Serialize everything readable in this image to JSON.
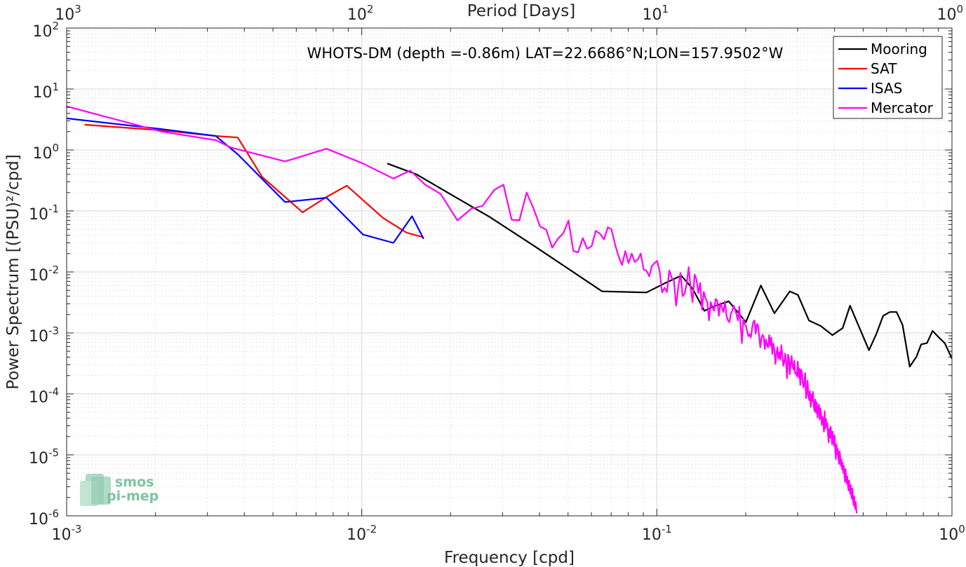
{
  "chart_data": {
    "type": "line",
    "title": "WHOTS-DM (depth =-0.86m) LAT=22.6686°N;LON=157.9502°W",
    "xlabel": "Frequency [cpd]",
    "ylabel": "Power Spectrum [(PSU)²/cpd]",
    "x2label": "Period [Days]",
    "xscale": "log",
    "yscale": "log",
    "xlim": [
      0.001,
      1
    ],
    "ylim": [
      1e-06,
      100
    ],
    "grid": true,
    "legend_position": "top-right",
    "x_ticks": [
      {
        "value": 0.001,
        "base": "10",
        "exp": "-3"
      },
      {
        "value": 0.01,
        "base": "10",
        "exp": "-2"
      },
      {
        "value": 0.1,
        "base": "10",
        "exp": "-1"
      },
      {
        "value": 1,
        "base": "10",
        "exp": "0"
      }
    ],
    "x2_ticks": [
      {
        "value": 0.001,
        "base": "10",
        "exp": "3"
      },
      {
        "value": 0.01,
        "base": "10",
        "exp": "2"
      },
      {
        "value": 0.1,
        "base": "10",
        "exp": "1"
      },
      {
        "value": 1,
        "base": "10",
        "exp": "0"
      }
    ],
    "y_ticks": [
      {
        "value": 100,
        "base": "10",
        "exp": "2"
      },
      {
        "value": 10,
        "base": "10",
        "exp": "1"
      },
      {
        "value": 1,
        "base": "10",
        "exp": "0"
      },
      {
        "value": 0.1,
        "base": "10",
        "exp": "-1"
      },
      {
        "value": 0.01,
        "base": "10",
        "exp": "-2"
      },
      {
        "value": 0.001,
        "base": "10",
        "exp": "-3"
      },
      {
        "value": 0.0001,
        "base": "10",
        "exp": "-4"
      },
      {
        "value": 1e-05,
        "base": "10",
        "exp": "-5"
      },
      {
        "value": 1e-06,
        "base": "10",
        "exp": "-6"
      }
    ],
    "series": [
      {
        "name": "Mooring",
        "color": "#000000",
        "x": [
          0.0122,
          0.0153,
          0.0203,
          0.0271,
          0.0392,
          0.0652,
          0.0922,
          0.1062,
          0.121,
          0.1322,
          0.145,
          0.1552,
          0.1752,
          0.2003,
          0.2252,
          0.2502,
          0.2821,
          0.3006,
          0.3276,
          0.3594,
          0.3934,
          0.4262,
          0.4514,
          0.4768,
          0.5232,
          0.5552,
          0.5842,
          0.6158,
          0.6491,
          0.6802,
          0.7194,
          0.7586,
          0.7866,
          0.8225,
          0.8598,
          0.9012,
          0.9451,
          1.0
        ],
        "y": [
          0.6,
          0.4,
          0.18,
          0.08,
          0.025,
          0.0048,
          0.0046,
          0.0065,
          0.0087,
          0.0053,
          0.0023,
          0.0027,
          0.0033,
          0.0015,
          0.006,
          0.0021,
          0.0048,
          0.0042,
          0.0016,
          0.0013,
          0.00092,
          0.0012,
          0.0028,
          0.0015,
          0.00052,
          0.00098,
          0.0019,
          0.0022,
          0.0022,
          0.00135,
          0.00028,
          0.00041,
          0.00065,
          0.00068,
          0.00108,
          0.00085,
          0.00068,
          0.00038
        ]
      },
      {
        "name": "SAT",
        "color": "#ff0000",
        "x": [
          0.00115,
          0.0021,
          0.0032,
          0.0038,
          0.0046,
          0.0063,
          0.0076,
          0.0089,
          0.0118,
          0.0142,
          0.0162
        ],
        "y": [
          2.6,
          2.1,
          1.7,
          1.6,
          0.36,
          0.095,
          0.17,
          0.26,
          0.077,
          0.044,
          0.037
        ]
      },
      {
        "name": "ISAS",
        "color": "#0000ff",
        "x": [
          0.001,
          0.0021,
          0.0032,
          0.0038,
          0.0055,
          0.0076,
          0.0101,
          0.0128,
          0.0148,
          0.0162
        ],
        "y": [
          3.3,
          2.2,
          1.7,
          0.85,
          0.14,
          0.165,
          0.041,
          0.03,
          0.082,
          0.035
        ]
      },
      {
        "name": "Mercator",
        "color": "#ff00ff",
        "x": [
          0.001,
          0.0021,
          0.0032,
          0.0036,
          0.0055,
          0.0076,
          0.0101,
          0.0128,
          0.0146,
          0.0164,
          0.0185,
          0.0211,
          0.0236,
          0.0256,
          0.0281,
          0.0302,
          0.0322,
          0.0342,
          0.0362,
          0.0382,
          0.0402,
          0.0422,
          0.0442,
          0.0462,
          0.0482,
          0.0502,
          0.0521,
          0.0541,
          0.0561,
          0.0581,
          0.0601,
          0.0621,
          0.0642,
          0.0662,
          0.0682,
          0.0702,
          0.0722,
          0.0742,
          0.0762,
          0.0782,
          0.0802,
          0.0822,
          0.0842,
          0.0862,
          0.0882,
          0.0902,
          0.0922,
          0.0942,
          0.0962,
          0.0982,
          0.1002,
          0.1022,
          0.1042,
          0.1062,
          0.1082,
          0.1102,
          0.1122,
          0.1142,
          0.1162,
          0.1182,
          0.1202,
          0.1222,
          0.1242,
          0.1262,
          0.1282,
          0.1302,
          0.1322,
          0.1342,
          0.1362,
          0.1382,
          0.1402,
          0.1422,
          0.1442,
          0.1462,
          0.1482,
          0.1502,
          0.1522,
          0.1542,
          0.1562,
          0.1582,
          0.1602,
          0.1622,
          0.1642,
          0.1662,
          0.1682,
          0.1702,
          0.1722,
          0.1742,
          0.1762,
          0.1782,
          0.1802,
          0.1822,
          0.1842,
          0.1862,
          0.1882,
          0.1902,
          0.1922,
          0.1942,
          0.1962,
          0.1982,
          0.2002,
          0.2022,
          0.2042,
          0.2062,
          0.2082,
          0.2102,
          0.2122,
          0.2142,
          0.2162,
          0.2182,
          0.2202,
          0.2222,
          0.2242,
          0.2262,
          0.2282,
          0.2302,
          0.2322,
          0.2342,
          0.2362,
          0.2382,
          0.2402,
          0.2422,
          0.2442,
          0.2462,
          0.2482,
          0.2502,
          0.2522,
          0.2542,
          0.2562,
          0.2582,
          0.2602,
          0.2622,
          0.2642,
          0.2662,
          0.2682,
          0.2702,
          0.2722,
          0.2742,
          0.2762,
          0.2782,
          0.2802,
          0.2822,
          0.2842,
          0.2862,
          0.2882,
          0.2902,
          0.2922,
          0.2942,
          0.2962,
          0.2982,
          0.3002,
          0.3022,
          0.3042,
          0.3062,
          0.3082,
          0.3102,
          0.3122,
          0.3142,
          0.3162,
          0.3182,
          0.3202,
          0.3222,
          0.3242,
          0.3262,
          0.3282,
          0.3302,
          0.3322,
          0.3342,
          0.3362,
          0.3382,
          0.3402,
          0.3422,
          0.3442,
          0.3462,
          0.3482,
          0.3502,
          0.3522,
          0.3542,
          0.3562,
          0.3582,
          0.3602,
          0.3622,
          0.3642,
          0.3662,
          0.3682,
          0.3702,
          0.3722,
          0.3742,
          0.3762,
          0.3782,
          0.3802,
          0.3822,
          0.3842,
          0.3862,
          0.3882,
          0.3902,
          0.3922,
          0.3942,
          0.3962,
          0.3982,
          0.4002,
          0.4022,
          0.4042,
          0.4062,
          0.4082,
          0.4102,
          0.4122,
          0.4142,
          0.4162,
          0.4182,
          0.4202,
          0.4222,
          0.4242,
          0.4262,
          0.4282,
          0.4302,
          0.4322,
          0.4342,
          0.4362,
          0.4382,
          0.4402,
          0.4422,
          0.4442,
          0.4462,
          0.4482,
          0.4502,
          0.4522,
          0.4542,
          0.4562,
          0.4582,
          0.4602,
          0.4622,
          0.4642,
          0.4662,
          0.4682,
          0.4702,
          0.4722,
          0.4742,
          0.4762
        ],
        "y": [
          5.2,
          2.0,
          1.45,
          1.1,
          0.65,
          1.05,
          0.6,
          0.34,
          0.46,
          0.27,
          0.19,
          0.07,
          0.11,
          0.12,
          0.22,
          0.27,
          0.072,
          0.07,
          0.2,
          0.11,
          0.056,
          0.049,
          0.025,
          0.035,
          0.043,
          0.07,
          0.022,
          0.021,
          0.036,
          0.024,
          0.0264,
          0.0472,
          0.0422,
          0.0342,
          0.054,
          0.05,
          0.028,
          0.018,
          0.013,
          0.022,
          0.014,
          0.02,
          0.0146,
          0.016,
          0.02,
          0.011,
          0.0105,
          0.0085,
          0.0125,
          0.014,
          0.0152,
          0.0103,
          0.0046,
          0.0055,
          0.0047,
          0.0106,
          0.0081,
          0.0072,
          0.0028,
          0.0056,
          0.0096,
          0.004,
          0.0044,
          0.0064,
          0.012,
          0.0054,
          0.0032,
          0.0091,
          0.0075,
          0.0045,
          0.0066,
          0.0024,
          0.0047,
          0.0037,
          0.0032,
          0.0016,
          0.0032,
          0.0026,
          0.0023,
          0.0036,
          0.0034,
          0.0019,
          0.0031,
          0.0026,
          0.0022,
          0.0033,
          0.0019,
          0.0016,
          0.0015,
          0.0021,
          0.0023,
          0.0028,
          0.0024,
          0.002,
          0.0016,
          0.0027,
          0.0013,
          0.00068,
          0.0017,
          0.0014,
          0.00133,
          0.00108,
          0.00088,
          0.00095,
          0.00084,
          0.0012,
          0.0015,
          0.0016,
          0.00097,
          0.0014,
          0.00133,
          0.00088,
          0.00058,
          0.00084,
          0.00093,
          0.00085,
          0.00054,
          0.00078,
          0.00063,
          0.00058,
          0.00092,
          0.00062,
          0.00084,
          0.00045,
          0.00067,
          0.00052,
          0.00031,
          0.00046,
          0.00058,
          0.00038,
          0.00048,
          0.00036,
          0.00063,
          0.00044,
          0.00029,
          0.00033,
          0.00046,
          0.00031,
          0.00018,
          0.00044,
          0.00039,
          0.00021,
          0.00032,
          0.00042,
          0.00029,
          0.00025,
          0.00035,
          0.000215,
          0.00022,
          0.000195,
          0.00034,
          0.000185,
          0.00026,
          0.00014,
          0.00025,
          0.00022,
          0.00015,
          0.000127,
          0.00016,
          0.00022,
          8.5e-05,
          0.000108,
          0.000165,
          9.2e-05,
          7.9e-05,
          0.000112,
          6.1e-05,
          9.8e-05,
          7.5e-05,
          0.000108,
          6.2e-05,
          5.2e-05,
          8.1e-05,
          4.9e-05,
          7.2e-05,
          4.1e-05,
          5.5e-05,
          6.7e-05,
          3.8e-05,
          5.8e-05,
          4.7e-05,
          3.1e-05,
          4.2e-05,
          3.6e-05,
          2.4e-05,
          5.2e-05,
          2.7e-05,
          3.9e-05,
          2.9e-05,
          3.3e-05,
          2.1e-05,
          1.6e-05,
          2.7e-05,
          1.9e-05,
          2.9e-05,
          2.2e-05,
          1.5e-05,
          2.4e-05,
          1.8e-05,
          1.4e-05,
          2.1e-05,
          1.18e-05,
          8.5e-06,
          1.48e-05,
          1.02e-05,
          1.26e-05,
          8.7e-06,
          7.1e-06,
          1.15e-05,
          9.5e-06,
          6.6e-06,
          8.4e-06,
          5.8e-06,
          7.4e-06,
          5.1e-06,
          6.6e-06,
          4.7e-06,
          3.6e-06,
          5.8e-06,
          4.2e-06,
          3.4e-06,
          4.4e-06,
          3.1e-06,
          2.6e-06,
          3.8e-06,
          2.9e-06,
          2.3e-06,
          3.2e-06,
          2.1e-06,
          1.9e-06,
          2.8e-06,
          1.8e-06,
          1.5e-06,
          2.1e-06,
          1.4e-06,
          1.3e-06,
          1.7e-06,
          1.2e-06,
          1.1e-06
        ]
      }
    ],
    "logo_text": [
      "smos",
      "pi-mep"
    ]
  }
}
